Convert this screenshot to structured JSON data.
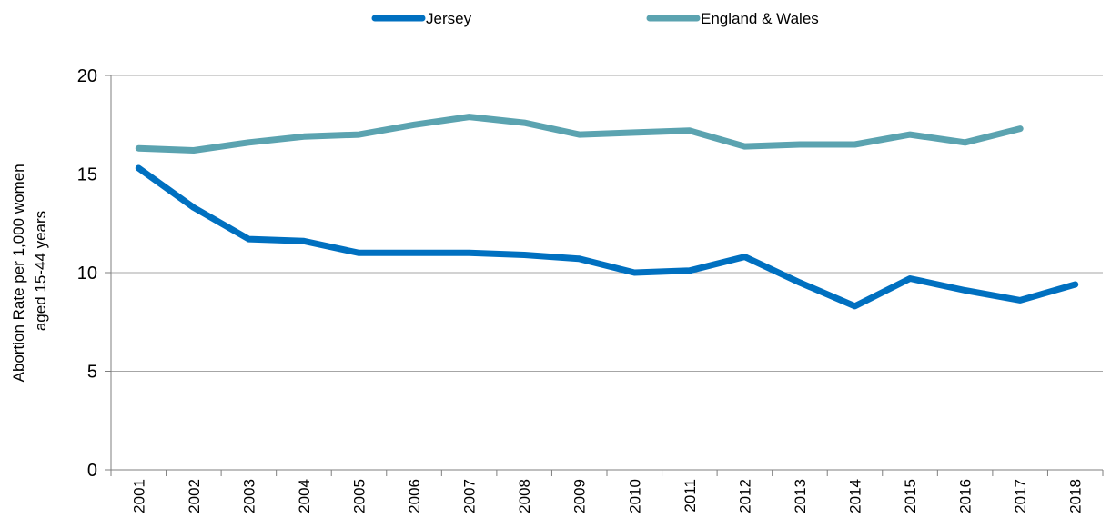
{
  "chart_data": {
    "type": "line",
    "title": "",
    "xlabel": "",
    "ylabel": [
      "Abortion Rate per 1,000 women",
      "aged 15-44 years"
    ],
    "ylim": [
      0,
      20
    ],
    "yticks": [
      "0",
      "5",
      "10",
      "15",
      "20"
    ],
    "grid": "horizontal",
    "legend": "top-center",
    "categories": [
      "2001",
      "2002",
      "2003",
      "2004",
      "2005",
      "2006",
      "2007",
      "2008",
      "2009",
      "2010",
      "2011",
      "2012",
      "2013",
      "2014",
      "2015",
      "2016",
      "2017",
      "2018"
    ],
    "series": [
      {
        "name": "Jersey",
        "color": "#0070c0",
        "values": [
          15.3,
          13.3,
          11.7,
          11.6,
          11.0,
          11.0,
          11.0,
          10.9,
          10.7,
          10.0,
          10.1,
          10.8,
          9.5,
          8.3,
          9.7,
          9.1,
          8.6,
          9.4
        ]
      },
      {
        "name": "England & Wales",
        "color": "#5ba3b0",
        "values": [
          16.3,
          16.2,
          16.6,
          16.9,
          17.0,
          17.5,
          17.9,
          17.6,
          17.0,
          17.1,
          17.2,
          16.4,
          16.5,
          16.5,
          17.0,
          16.6,
          17.3,
          null
        ]
      }
    ],
    "colors": {
      "gridline": "#a6a6a6",
      "axis": "#7f7f7f"
    }
  }
}
